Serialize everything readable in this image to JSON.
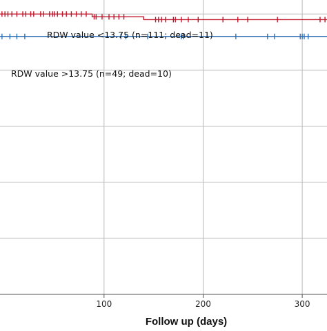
{
  "chart_data": {
    "type": "line",
    "subtype": "kaplan-meier",
    "xlabel": "Follow up (days)",
    "ylabel": "",
    "x_ticks": [
      100,
      200,
      300
    ],
    "xlim": [
      -5,
      325
    ],
    "ylim": [
      0.0,
      1.05
    ],
    "grid": true,
    "series": [
      {
        "name": "RDW value <13.75 (n=111; dead=11)",
        "color": "#c0142b",
        "steps": [
          [
            -5,
            1.0
          ],
          [
            88,
            1.0
          ],
          [
            88,
            0.99
          ],
          [
            140,
            0.99
          ],
          [
            140,
            0.98
          ],
          [
            325,
            0.98
          ]
        ],
        "censored": [
          -3,
          0,
          3,
          7,
          12,
          18,
          21,
          26,
          29,
          36,
          39,
          45,
          48,
          50,
          53,
          58,
          62,
          67,
          72,
          77,
          82,
          90,
          92,
          98,
          105,
          110,
          115,
          120,
          152,
          155,
          158,
          162,
          170,
          172,
          178,
          185,
          195,
          220,
          235,
          245,
          275,
          318,
          323
        ]
      },
      {
        "name": "RDW value >13.75 (n=49; dead=10)",
        "color": "#2f6fb5",
        "steps": [
          [
            -5,
            0.92
          ],
          [
            325,
            0.92
          ]
        ],
        "censored": [
          -3,
          5,
          12,
          20,
          117,
          122,
          144,
          178,
          180,
          233,
          265,
          272,
          298,
          300,
          302,
          306
        ]
      }
    ]
  }
}
